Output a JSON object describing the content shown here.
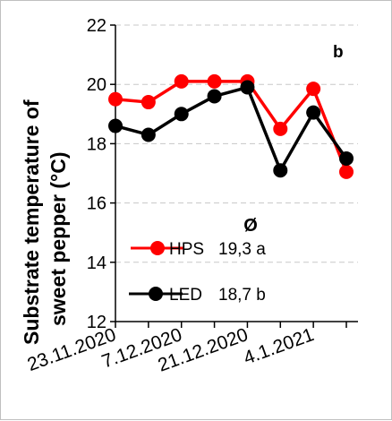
{
  "chart_data": {
    "type": "line",
    "ylabel_lines": [
      "Substrate temperature of",
      "sweet pepper (°C)"
    ],
    "panel_label": "b",
    "ylim": [
      12,
      22
    ],
    "yticks": [
      12,
      14,
      16,
      18,
      20,
      22
    ],
    "grid": "horizontal dashed",
    "xtick_labels": [
      "23.11.2020",
      "7.12.2020",
      "21.12.2020",
      "4.1.2021"
    ],
    "xtick_positions": [
      0,
      2,
      4,
      6
    ],
    "x_count": 8,
    "series": [
      {
        "name": "HPS",
        "color": "#ff0000",
        "values": [
          19.5,
          19.4,
          20.1,
          20.1,
          20.1,
          18.5,
          19.85,
          17.05
        ]
      },
      {
        "name": "LED",
        "color": "#000000",
        "values": [
          18.6,
          18.3,
          19.0,
          19.6,
          19.9,
          17.1,
          19.05,
          17.5
        ]
      }
    ],
    "legend": {
      "symbol": "Ø",
      "entries": [
        {
          "name": "HPS",
          "mean": "19,3 a",
          "color": "#ff0000"
        },
        {
          "name": "LED",
          "mean": "18,7 b",
          "color": "#000000"
        }
      ]
    }
  }
}
